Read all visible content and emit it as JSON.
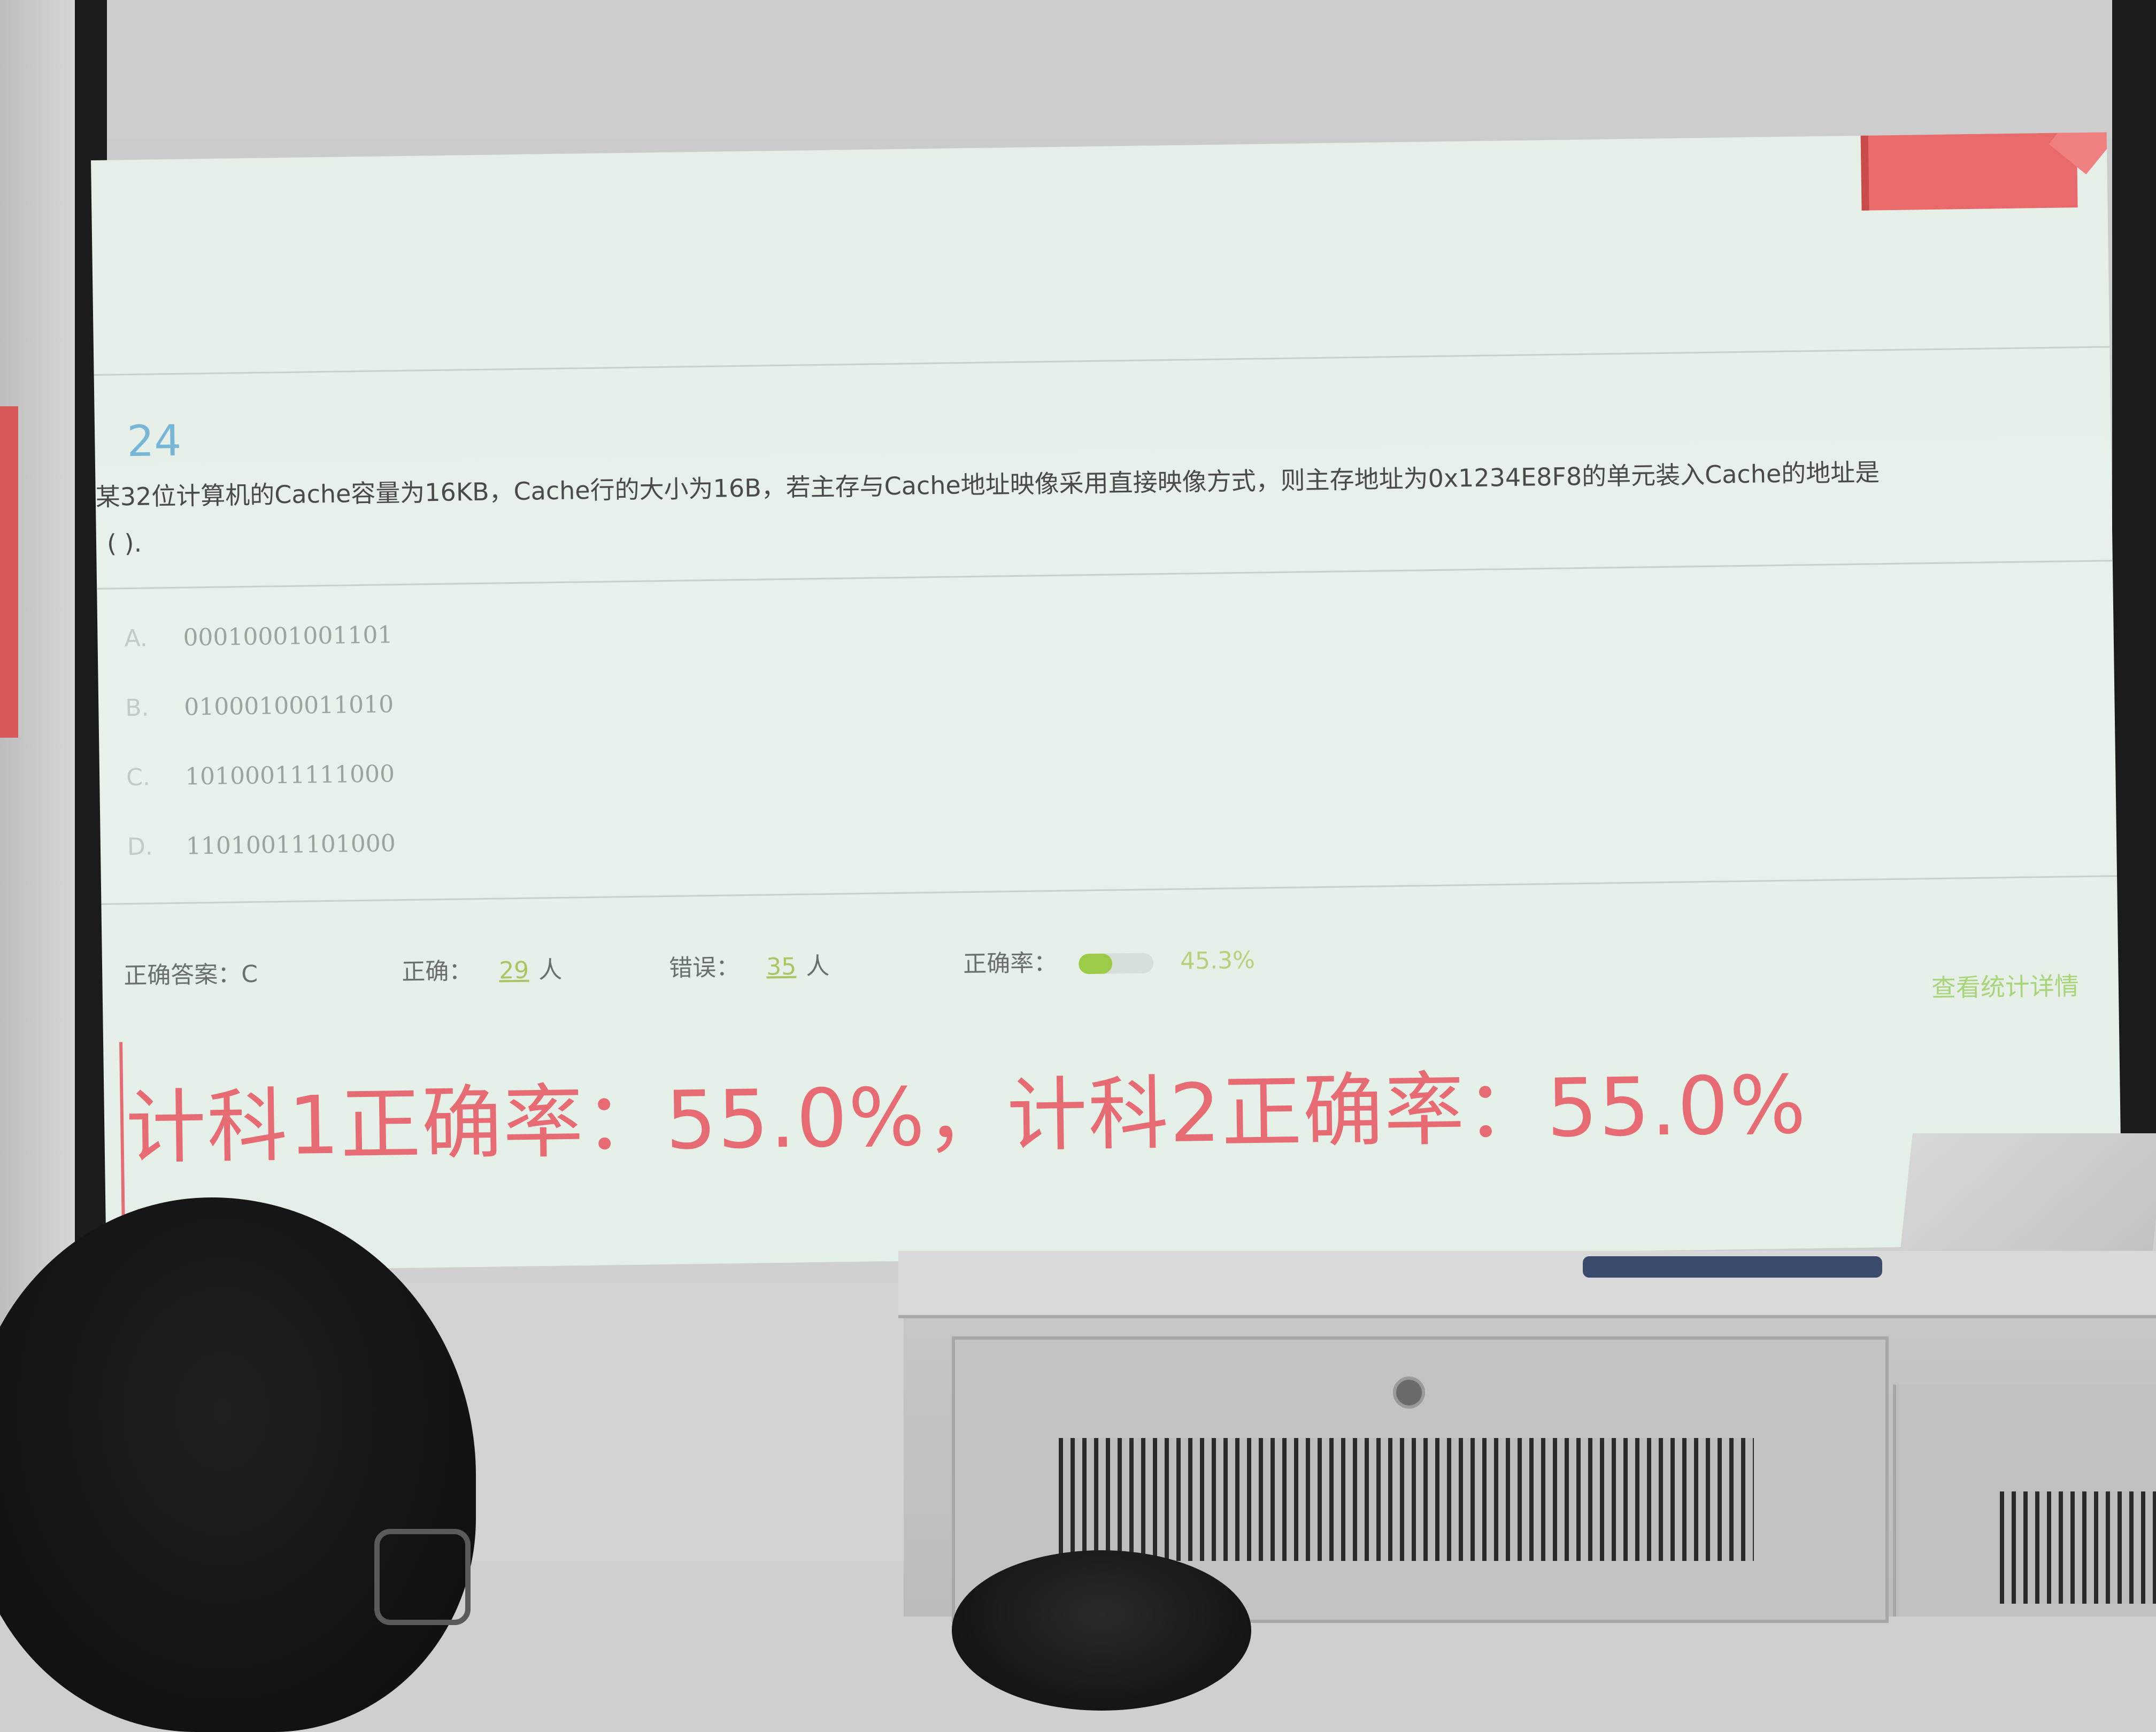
{
  "slide": {
    "question_number": "24",
    "question_text": "某32位计算机的Cache容量为16KB，Cache行的大小为16B，若主存与Cache地址映像采用直接映像方式，则主存地址为0x1234E8F8的单元装入Cache的地址是",
    "question_blank": "(      ).",
    "options": [
      {
        "letter": "A.",
        "value": "00010001001101"
      },
      {
        "letter": "B.",
        "value": "01000100011010"
      },
      {
        "letter": "C.",
        "value": "10100011111000"
      },
      {
        "letter": "D.",
        "value": "11010011101000"
      }
    ],
    "stats": {
      "correct_answer_label": "正确答案：",
      "correct_answer": "C",
      "correct_label": "正确：",
      "correct_count": "29",
      "correct_unit": "人",
      "wrong_label": "错误：",
      "wrong_count": "35",
      "wrong_unit": "人",
      "rate_label": "正确率：",
      "rate_fraction": 0.453,
      "rate_text": "45.3%"
    },
    "details_link": "查看统计详情",
    "class_rates_line": "计科1正确率：55.0%，计科2正确率：55.0%"
  },
  "colors": {
    "slide_background": "#e6f0e8",
    "question_number": "#78b6d8",
    "highlight_red": "#e66b72",
    "stat_green": "#a8c764"
  }
}
